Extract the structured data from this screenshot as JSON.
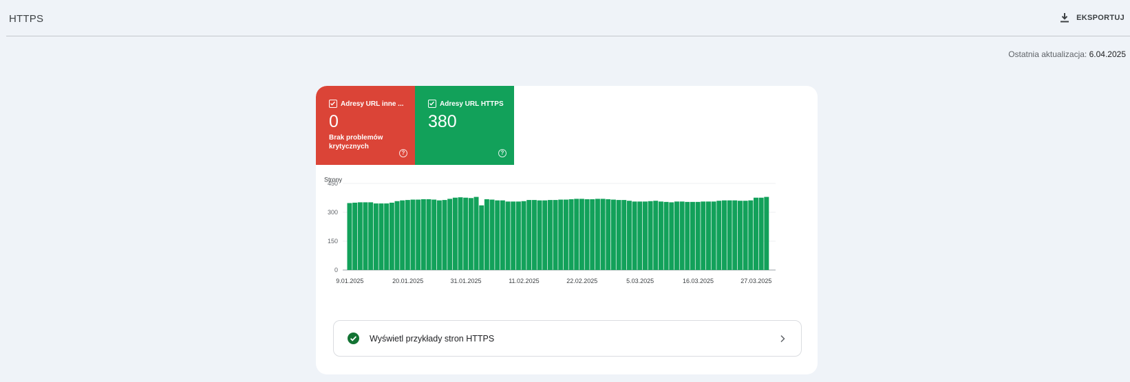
{
  "header": {
    "title": "HTTPS",
    "export_label": "EKSPORTUJ"
  },
  "last_update": {
    "label": "Ostatnia aktualizacja:",
    "value": "6.04.2025"
  },
  "tiles": [
    {
      "label": "Adresy URL inne ...",
      "value": "0",
      "subtitle": "Brak problemów krytycznych",
      "color": "#db4437",
      "checked": true
    },
    {
      "label": "Adresy URL HTTPS",
      "value": "380",
      "subtitle": "",
      "color": "#12a15a",
      "checked": true
    }
  ],
  "chart_data": {
    "type": "bar",
    "title": "",
    "ylabel": "Strony",
    "xlabel": "",
    "ylim": [
      0,
      450
    ],
    "yticks": [
      0,
      150,
      300,
      450
    ],
    "x_tick_labels": [
      "9.01.2025",
      "20.01.2025",
      "31.01.2025",
      "11.02.2025",
      "22.02.2025",
      "5.03.2025",
      "16.03.2025",
      "27.03.2025"
    ],
    "series": [
      {
        "color": "#12a15a",
        "values": [
          348,
          350,
          352,
          352,
          352,
          346,
          346,
          346,
          350,
          358,
          362,
          364,
          366,
          366,
          368,
          368,
          366,
          362,
          364,
          370,
          376,
          378,
          376,
          374,
          380,
          336,
          368,
          366,
          362,
          362,
          356,
          356,
          356,
          358,
          364,
          364,
          362,
          362,
          364,
          364,
          366,
          366,
          368,
          370,
          370,
          368,
          368,
          370,
          370,
          368,
          366,
          364,
          364,
          360,
          356,
          356,
          356,
          358,
          360,
          356,
          354,
          352,
          356,
          356,
          354,
          354,
          354,
          356,
          356,
          356,
          360,
          362,
          362,
          362,
          360,
          360,
          362,
          376,
          376,
          380
        ]
      }
    ],
    "grid": true
  },
  "examples": {
    "label": "Wyświetl przykłady stron HTTPS"
  }
}
